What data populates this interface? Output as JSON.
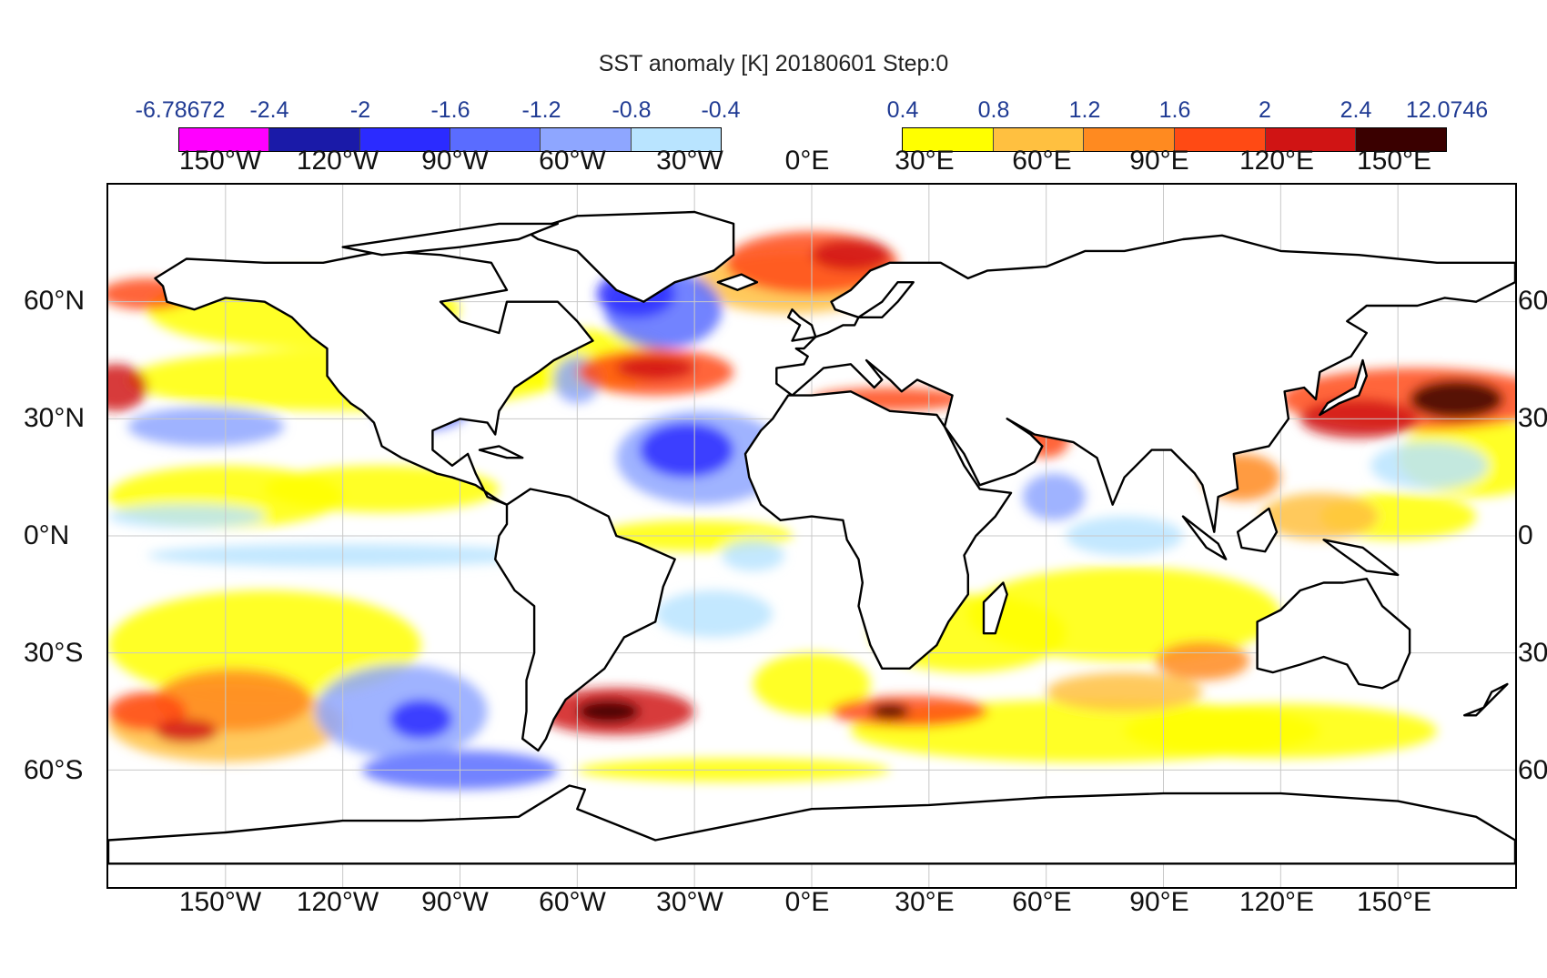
{
  "title": "SST anomaly [K] 20180601 Step:0",
  "colorbar": {
    "negative": {
      "labels": [
        "-6.78672",
        "-2.4",
        "-2",
        "-1.6",
        "-1.2",
        "-0.8",
        "-0.4"
      ],
      "colors": [
        "#ff00ff",
        "#1a1aa8",
        "#2b2bff",
        "#5a6cff",
        "#8ea6ff",
        "#b9e4ff"
      ]
    },
    "positive": {
      "labels": [
        "0.4",
        "0.8",
        "1.2",
        "1.6",
        "2",
        "2.4",
        "12.0746"
      ],
      "colors": [
        "#ffff00",
        "#ffc040",
        "#ff8a20",
        "#ff4a14",
        "#d01414",
        "#3a0000"
      ]
    }
  },
  "x_ticks": [
    "150°W",
    "120°W",
    "90°W",
    "60°W",
    "30°W",
    "0°E",
    "30°E",
    "60°E",
    "90°E",
    "120°E",
    "150°E"
  ],
  "y_ticks_left": [
    "60°N",
    "30°N",
    "0°N",
    "30°S",
    "60°S"
  ],
  "y_ticks_right": [
    "60",
    "30",
    "0",
    "30",
    "60"
  ],
  "map": {
    "projection": "equirectangular",
    "lon_range": [
      -180,
      180
    ],
    "lat_range": [
      -90,
      90
    ],
    "grid_lon_step": 30,
    "grid_lat_step": 30,
    "grid": true,
    "ocean_color": "#ffffff",
    "coast_color": "#000000"
  }
}
